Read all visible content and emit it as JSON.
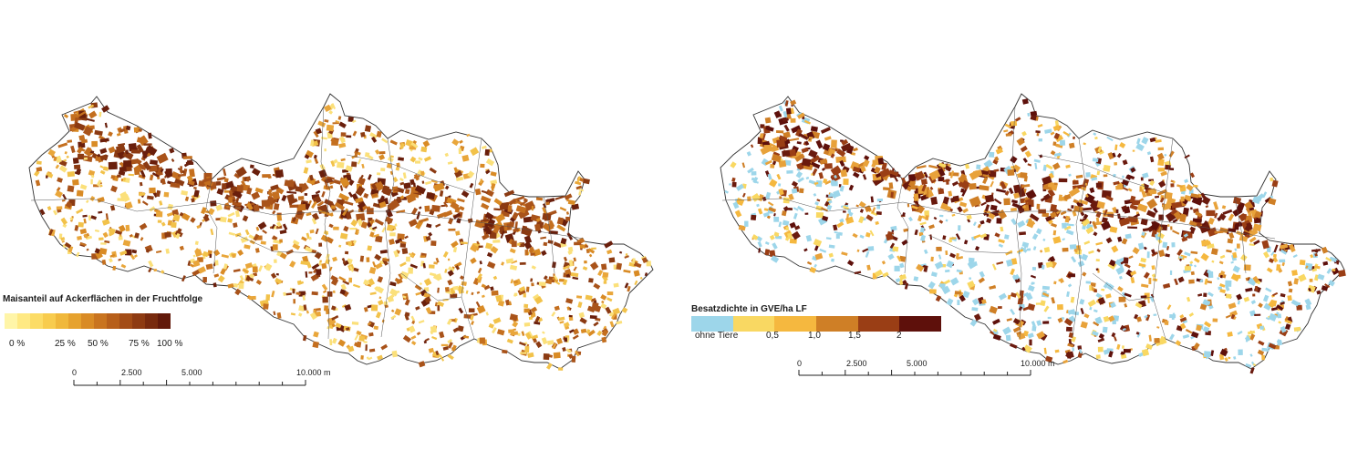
{
  "maps": [
    {
      "id": "left",
      "legend": {
        "title": "Maisanteil auf Ackerflächen in der Fruchtfolge",
        "colors": [
          "#fff5a8",
          "#ffe983",
          "#fcdc66",
          "#f8cc4e",
          "#f0b83b",
          "#e6a22e",
          "#d98b25",
          "#c9741f",
          "#b75f1a",
          "#a34c16",
          "#8e3b12",
          "#782a0e",
          "#62190a"
        ],
        "labels": [
          "0 %",
          "25 %",
          "50 %",
          "75 %",
          "100 %"
        ]
      },
      "scalebar": {
        "labels": [
          "0",
          "2.500",
          "5.000",
          "10.000 m"
        ]
      },
      "palette": [
        "#fbe07a",
        "#f2c24a",
        "#e9a63a",
        "#d98b25",
        "#c46f1f",
        "#a9531a",
        "#8b3a12",
        "#6a1f0c"
      ]
    },
    {
      "id": "right",
      "legend": {
        "title": "Besatzdichte in GVE/ha LF",
        "colors": [
          "#9dd6ea",
          "#f9d862",
          "#f5b83f",
          "#cf7f26",
          "#9a3e15",
          "#5e100b"
        ],
        "labels": [
          "ohne Tiere",
          "0,5",
          "1,0",
          "1,5",
          "2"
        ]
      },
      "scalebar": {
        "labels": [
          "0",
          "2.500",
          "5.000",
          "10.000 m"
        ]
      },
      "palette": [
        "#9dd6ea",
        "#9dd6ea",
        "#f9d862",
        "#f5b83f",
        "#e8a23a",
        "#cf7f26",
        "#9a3e15",
        "#6a1a0e",
        "#5e100b"
      ]
    }
  ]
}
